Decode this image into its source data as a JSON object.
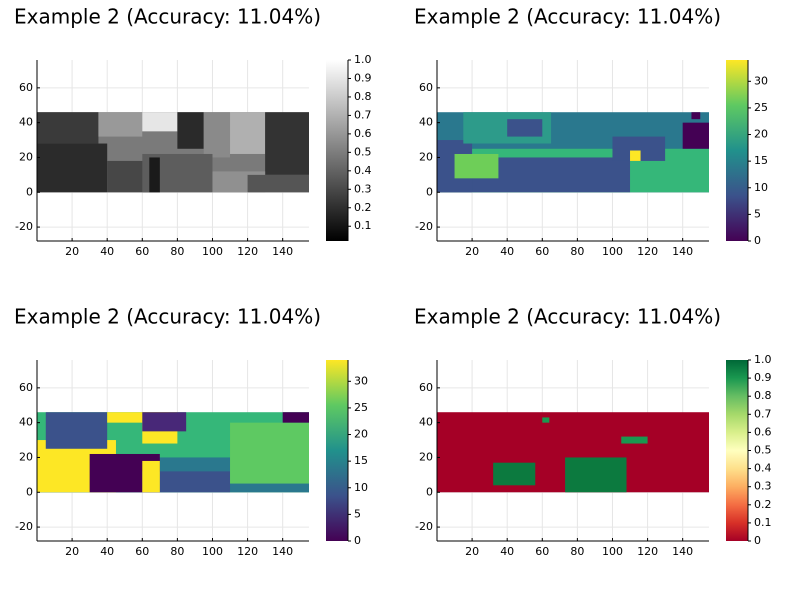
{
  "chart_data": [
    {
      "type": "heatmap",
      "title": "Example 2 (Accuracy: 11.04%)",
      "xlim": [
        0,
        155
      ],
      "ylim": [
        -28,
        76
      ],
      "x_ticks": [
        "20",
        "40",
        "60",
        "80",
        "100",
        "120",
        "140"
      ],
      "y_ticks": [
        "-20",
        "0",
        "20",
        "40",
        "60"
      ],
      "image_extent": {
        "x": [
          0,
          155
        ],
        "y": [
          0,
          46
        ]
      },
      "grid": true,
      "colormap": "grays",
      "colorbar": {
        "range": [
          0.02,
          1.0
        ],
        "ticks": [
          "0.1",
          "0.2",
          "0.3",
          "0.4",
          "0.5",
          "0.6",
          "0.7",
          "0.8",
          "0.9",
          "1.0"
        ]
      }
    },
    {
      "type": "heatmap",
      "title": "Example 2 (Accuracy: 11.04%)",
      "xlim": [
        0,
        155
      ],
      "ylim": [
        -28,
        76
      ],
      "x_ticks": [
        "20",
        "40",
        "60",
        "80",
        "100",
        "120",
        "140"
      ],
      "y_ticks": [
        "-20",
        "0",
        "20",
        "40",
        "60"
      ],
      "image_extent": {
        "x": [
          0,
          155
        ],
        "y": [
          0,
          46
        ]
      },
      "grid": true,
      "colormap": "viridis",
      "colorbar": {
        "range": [
          0,
          34
        ],
        "ticks": [
          "0",
          "5",
          "10",
          "15",
          "20",
          "25",
          "30"
        ]
      }
    },
    {
      "type": "heatmap",
      "title": "Example 2 (Accuracy: 11.04%)",
      "xlim": [
        0,
        155
      ],
      "ylim": [
        -28,
        76
      ],
      "x_ticks": [
        "20",
        "40",
        "60",
        "80",
        "100",
        "120",
        "140"
      ],
      "y_ticks": [
        "-20",
        "0",
        "20",
        "40",
        "60"
      ],
      "image_extent": {
        "x": [
          0,
          155
        ],
        "y": [
          0,
          46
        ]
      },
      "grid": true,
      "colormap": "viridis",
      "colorbar": {
        "range": [
          0,
          34
        ],
        "ticks": [
          "0",
          "5",
          "10",
          "15",
          "20",
          "25",
          "30"
        ]
      }
    },
    {
      "type": "heatmap",
      "title": "Example 2 (Accuracy: 11.04%)",
      "xlim": [
        0,
        155
      ],
      "ylim": [
        -28,
        76
      ],
      "x_ticks": [
        "20",
        "40",
        "60",
        "80",
        "100",
        "120",
        "140"
      ],
      "y_ticks": [
        "-20",
        "0",
        "20",
        "40",
        "60"
      ],
      "image_extent": {
        "x": [
          0,
          155
        ],
        "y": [
          0,
          46
        ]
      },
      "grid": true,
      "colormap": "RdYlGn",
      "colorbar": {
        "range": [
          0,
          1.0
        ],
        "ticks": [
          "0",
          "0.1",
          "0.2",
          "0.3",
          "0.4",
          "0.5",
          "0.6",
          "0.7",
          "0.8",
          "0.9",
          "1.0"
        ]
      }
    }
  ]
}
